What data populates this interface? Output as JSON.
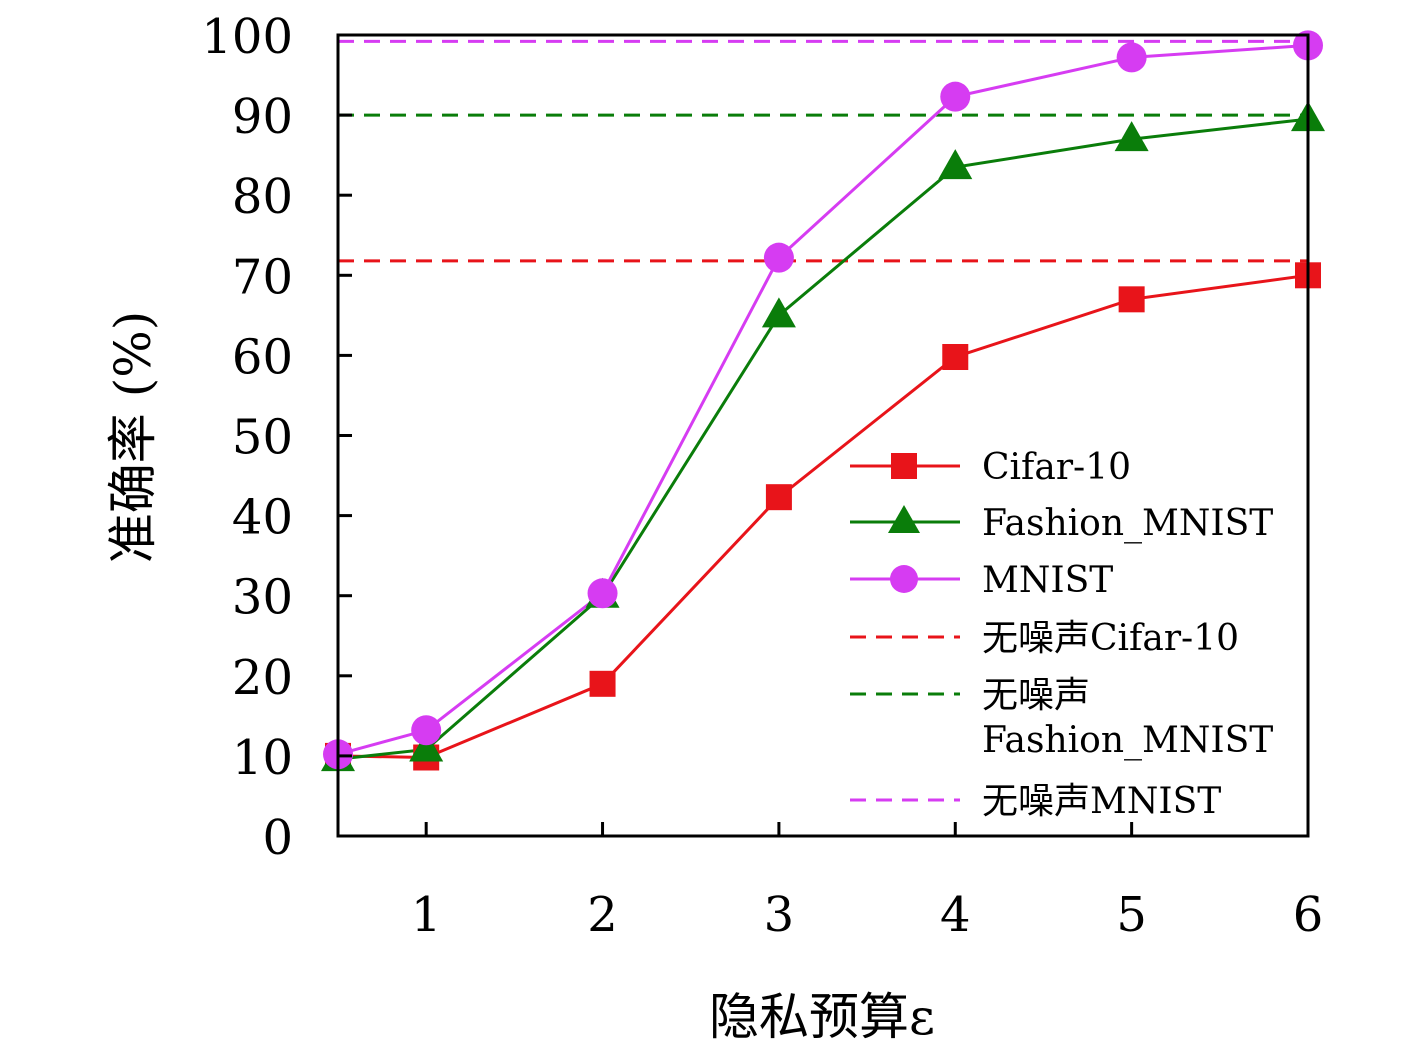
{
  "chart_data": {
    "type": "line",
    "xlabel": "隐私预算ε",
    "ylabel": "准确率 (%)",
    "xlim": [
      0.5,
      6
    ],
    "ylim": [
      0,
      100
    ],
    "x_ticks": [
      "1",
      "2",
      "3",
      "4",
      "5",
      "6"
    ],
    "y_ticks": [
      "0",
      "10",
      "20",
      "30",
      "40",
      "50",
      "60",
      "70",
      "80",
      "90",
      "100"
    ],
    "x": [
      0.5,
      1,
      2,
      3,
      4,
      5,
      6
    ],
    "series": [
      {
        "name": "Cifar-10",
        "color": "#e8141a",
        "marker": "square",
        "values": [
          10.0,
          9.8,
          19.0,
          42.3,
          59.8,
          67.0,
          70.0
        ]
      },
      {
        "name": "Fashion_MNIST",
        "color": "#0a7d0a",
        "marker": "triangle",
        "values": [
          9.6,
          10.8,
          30.0,
          65.0,
          83.5,
          87.0,
          89.5
        ]
      },
      {
        "name": "MNIST",
        "color": "#d63cf2",
        "marker": "circle",
        "values": [
          10.2,
          13.2,
          30.3,
          72.2,
          92.3,
          97.2,
          98.7
        ]
      }
    ],
    "reference_lines": [
      {
        "name": "无噪声Cifar-10",
        "color": "#e8141a",
        "value": 71.8
      },
      {
        "name_line1": "无噪声",
        "name_line2": "Fashion_MNIST",
        "color": "#0a7d0a",
        "value": 90.0
      },
      {
        "name": "无噪声MNIST",
        "color": "#d63cf2",
        "value": 99.2
      }
    ],
    "legend_position": "lower-right",
    "grid": false
  }
}
